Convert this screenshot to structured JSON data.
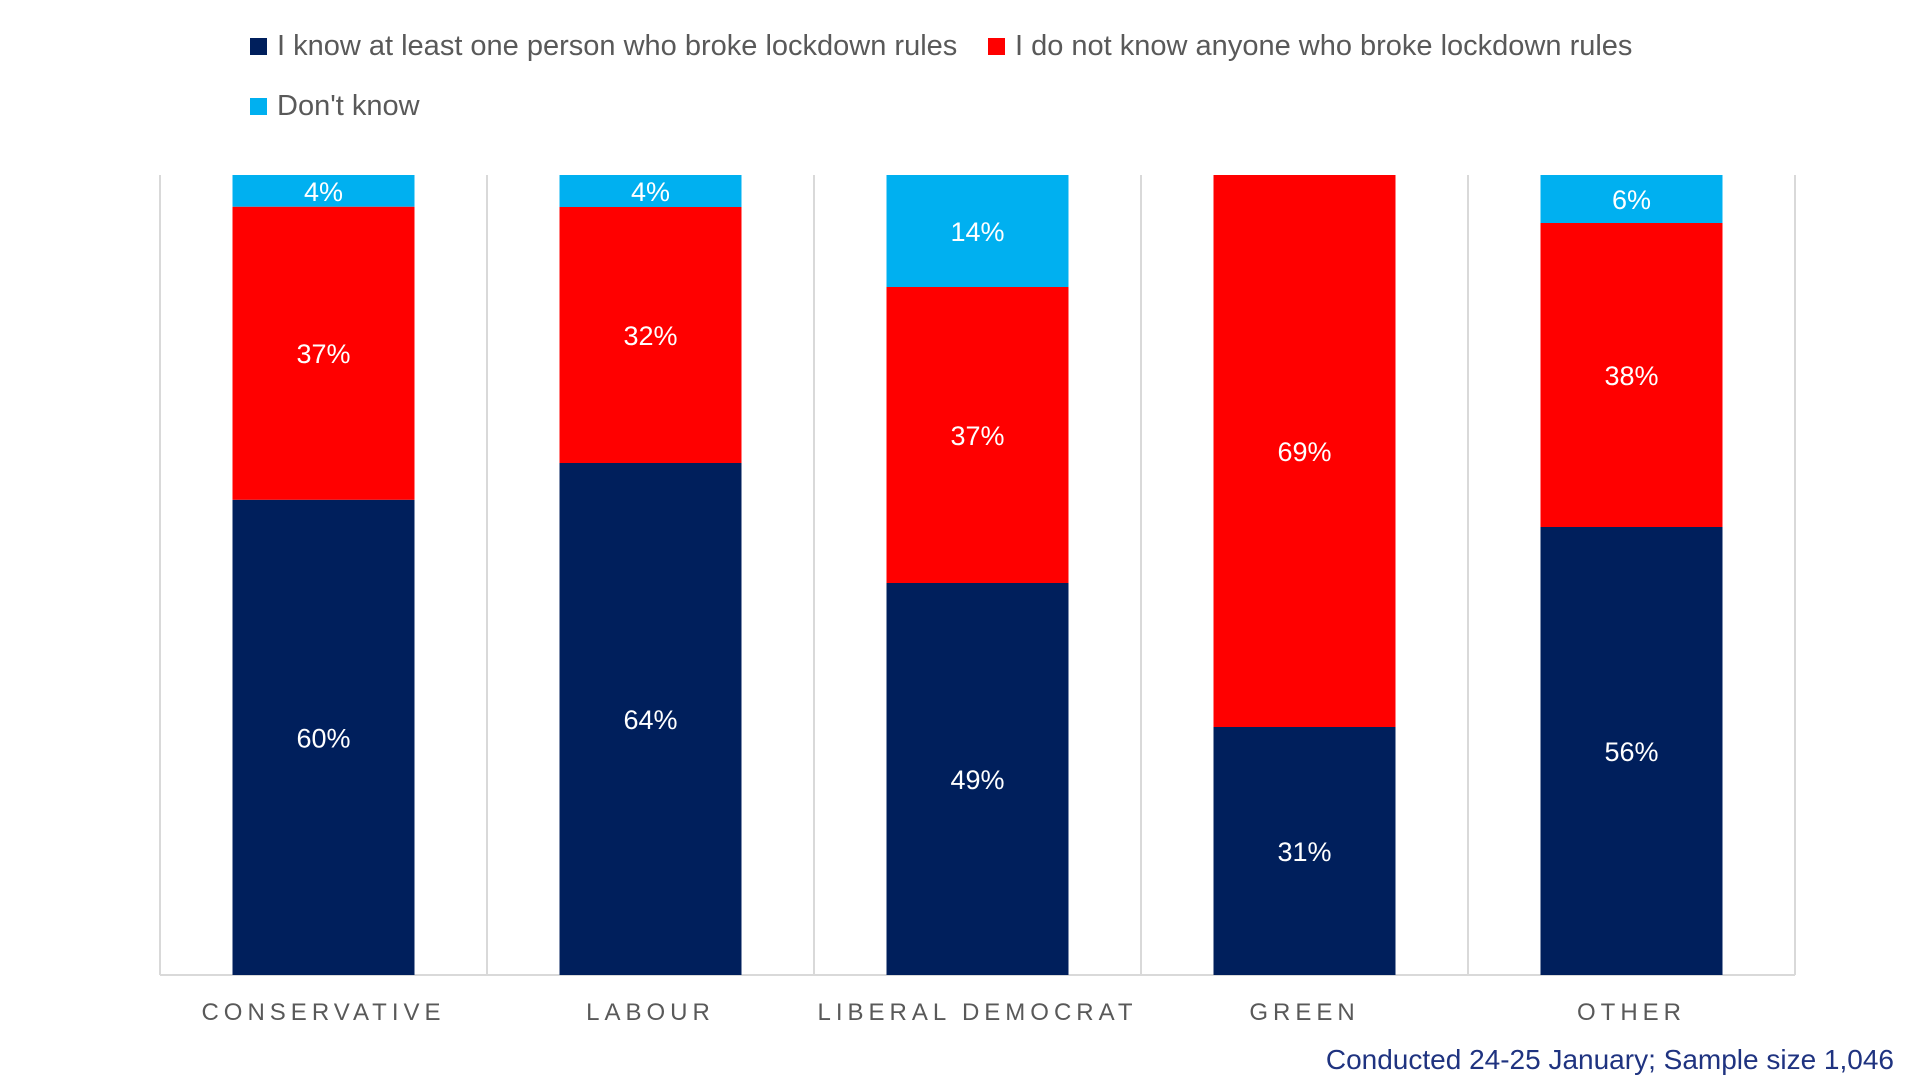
{
  "legend": {
    "know": "I know at least one person who broke lockdown rules",
    "dontknowanyone": "I do not know anyone who broke lockdown rules",
    "dk": "Don't know"
  },
  "footnote": "Conducted 24-25 January; Sample size 1,046",
  "colors": {
    "know": "#001f5c",
    "dontknowanyone": "#ff0000",
    "dk": "#00b0f0",
    "axis": "#d9d9d9",
    "category_text": "#595959"
  },
  "chart_data": {
    "type": "bar",
    "stacked": true,
    "percent_stacked": true,
    "categories": [
      "CONSERVATIVE",
      "LABOUR",
      "LIBERAL DEMOCRAT",
      "GREEN",
      "OTHER"
    ],
    "series": [
      {
        "name": "I know at least one person who broke lockdown rules",
        "key": "know",
        "values": [
          60,
          64,
          49,
          31,
          56
        ],
        "labels": [
          "60%",
          "64%",
          "49%",
          "31%",
          "56%"
        ]
      },
      {
        "name": "I do not know anyone who broke lockdown rules",
        "key": "dontknowanyone",
        "values": [
          37,
          32,
          37,
          69,
          38
        ],
        "labels": [
          "37%",
          "32%",
          "37%",
          "69%",
          "38%"
        ]
      },
      {
        "name": "Don't know",
        "key": "dk",
        "values": [
          4,
          4,
          14,
          0,
          6
        ],
        "labels": [
          "4%",
          "4%",
          "14%",
          "",
          "6%"
        ]
      }
    ],
    "ylim": [
      0,
      100
    ],
    "legend_position": "top"
  }
}
